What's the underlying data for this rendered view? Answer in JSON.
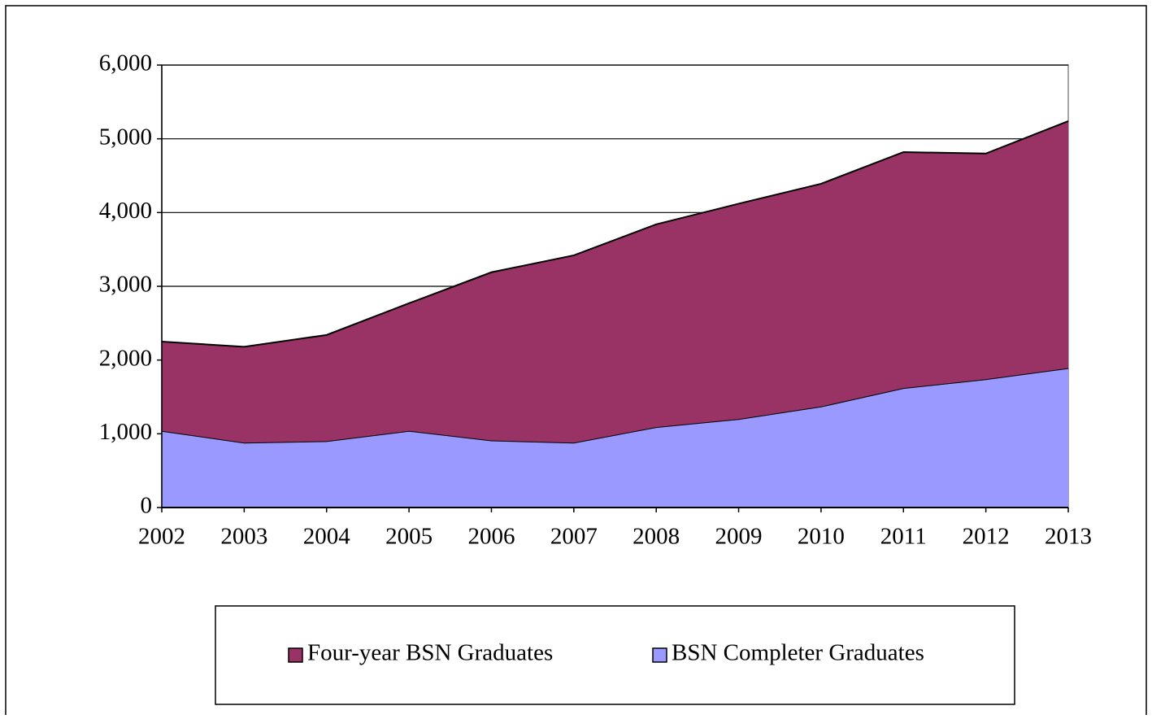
{
  "chart_data": {
    "type": "stacked_area",
    "categories": [
      "2002",
      "2003",
      "2004",
      "2005",
      "2006",
      "2007",
      "2008",
      "2009",
      "2010",
      "2011",
      "2012",
      "2013"
    ],
    "series": [
      {
        "name": "Four-year BSN Graduates",
        "color": "#993366",
        "values": [
          1210,
          1300,
          1440,
          1730,
          2280,
          2540,
          2750,
          2920,
          3020,
          3200,
          3060,
          3350
        ]
      },
      {
        "name": "BSN Completer Graduates",
        "color": "#9999ff",
        "values": [
          1040,
          880,
          900,
          1040,
          910,
          880,
          1090,
          1200,
          1370,
          1620,
          1740,
          1890
        ]
      }
    ],
    "ylim": [
      0,
      6000
    ],
    "yticks": [
      0,
      {
        "value": 1000,
        "label": "1,000"
      },
      {
        "value": 2000,
        "label": "2,000"
      },
      {
        "value": 3000,
        "label": "3,000"
      },
      {
        "value": 4000,
        "label": "4,000"
      },
      {
        "value": 5000,
        "label": "5,000"
      },
      {
        "value": 6000,
        "label": "6,000"
      }
    ],
    "grid": true,
    "legend": "bottom"
  }
}
